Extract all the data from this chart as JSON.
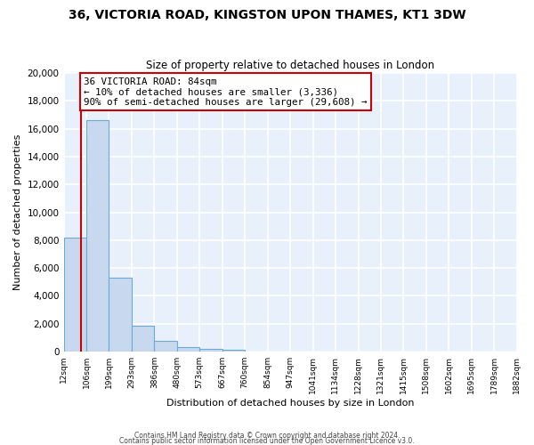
{
  "title1": "36, VICTORIA ROAD, KINGSTON UPON THAMES, KT1 3DW",
  "title2": "Size of property relative to detached houses in London",
  "xlabel": "Distribution of detached houses by size in London",
  "ylabel": "Number of detached properties",
  "bin_edges": [
    12,
    106,
    199,
    293,
    386,
    480,
    573,
    667,
    760,
    854,
    947,
    1041,
    1134,
    1228,
    1321,
    1415,
    1508,
    1602,
    1695,
    1789,
    1882
  ],
  "bin_labels": [
    "12sqm",
    "106sqm",
    "199sqm",
    "293sqm",
    "386sqm",
    "480sqm",
    "573sqm",
    "667sqm",
    "760sqm",
    "854sqm",
    "947sqm",
    "1041sqm",
    "1134sqm",
    "1228sqm",
    "1321sqm",
    "1415sqm",
    "1508sqm",
    "1602sqm",
    "1695sqm",
    "1789sqm",
    "1882sqm"
  ],
  "counts": [
    8200,
    16600,
    5300,
    1850,
    780,
    290,
    180,
    100,
    0,
    0,
    0,
    0,
    0,
    0,
    0,
    0,
    0,
    0,
    0,
    0
  ],
  "bar_color": "#c8d9ef",
  "bar_edge_color": "#6aaad4",
  "property_size": 84,
  "property_label": "36 VICTORIA ROAD: 84sqm",
  "smaller_pct": 10,
  "smaller_count": "3,336",
  "larger_pct": 90,
  "larger_count": "29,608",
  "red_line_color": "#cc0000",
  "annotation_box_edge": "#cc0000",
  "ylim": [
    0,
    20000
  ],
  "yticks": [
    0,
    2000,
    4000,
    6000,
    8000,
    10000,
    12000,
    14000,
    16000,
    18000,
    20000
  ],
  "background_color": "#ffffff",
  "plot_bg_color": "#e8f0fb",
  "grid_color": "#ffffff",
  "footer1": "Contains HM Land Registry data © Crown copyright and database right 2024.",
  "footer2": "Contains public sector information licensed under the Open Government Licence v3.0."
}
